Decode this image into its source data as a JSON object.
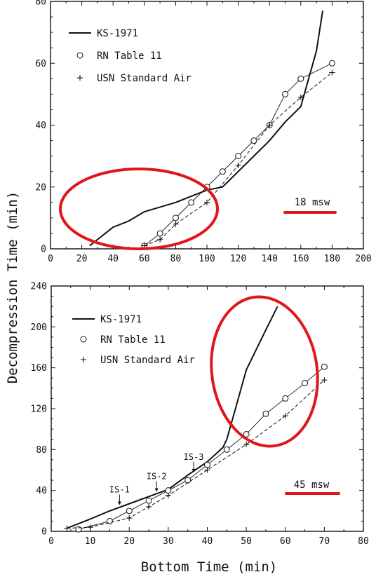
{
  "shared": {
    "ylabel": "Decompression Time (min)",
    "xlabel": "Bottom Time (min)"
  },
  "chart_data": [
    {
      "type": "line",
      "xlim": [
        0,
        200
      ],
      "ylim": [
        0,
        80
      ],
      "xticks": [
        0,
        20,
        40,
        60,
        80,
        100,
        120,
        140,
        160,
        180,
        200
      ],
      "yticks": [
        0,
        20,
        40,
        60,
        80
      ],
      "depth_label": "18 msw",
      "legend_position": "top-left",
      "series": [
        {
          "name": "KS-1971",
          "style": "solid",
          "x": [
            25,
            30,
            35,
            40,
            50,
            60,
            70,
            80,
            90,
            100,
            110,
            120,
            130,
            140,
            150,
            160,
            165,
            170,
            174
          ],
          "y": [
            1,
            3,
            5,
            7,
            9,
            12,
            13.5,
            15,
            17,
            19,
            20,
            25,
            30,
            35,
            41,
            46,
            55,
            64,
            77
          ]
        },
        {
          "name": "RN Table 11",
          "style": "thin-circles",
          "x": [
            60,
            70,
            80,
            90,
            100,
            110,
            120,
            130,
            140,
            150,
            160,
            180
          ],
          "y": [
            1,
            5,
            10,
            15,
            20,
            25,
            30,
            35,
            40,
            50,
            55,
            60
          ]
        },
        {
          "name": "USN Standard Air",
          "style": "dashed-plus",
          "x": [
            60,
            70,
            80,
            100,
            120,
            140,
            160,
            180
          ],
          "y": [
            1,
            3,
            8,
            15,
            27,
            40,
            49,
            57
          ]
        }
      ]
    },
    {
      "type": "line",
      "xlim": [
        0,
        80
      ],
      "ylim": [
        0,
        240
      ],
      "xticks": [
        0,
        10,
        20,
        30,
        40,
        50,
        60,
        70,
        80
      ],
      "yticks": [
        0,
        40,
        80,
        120,
        160,
        200,
        240
      ],
      "depth_label": "45 msw",
      "legend_position": "top-left",
      "annotations": [
        {
          "text": "IS-1",
          "x": 17.5,
          "y": 25
        },
        {
          "text": "IS-2",
          "x": 27,
          "y": 38
        },
        {
          "text": "IS-3",
          "x": 36.5,
          "y": 57
        }
      ],
      "series": [
        {
          "name": "KS-1971",
          "style": "solid",
          "x": [
            4,
            10,
            15,
            20,
            25,
            30,
            35,
            40,
            44,
            45,
            47,
            50,
            55,
            58
          ],
          "y": [
            3,
            12,
            20,
            27,
            34,
            41,
            55,
            68,
            82,
            90,
            117,
            158,
            197,
            220
          ]
        },
        {
          "name": "RN Table 11",
          "style": "thin-circles",
          "x": [
            7,
            15,
            20,
            25,
            30,
            35,
            40,
            45,
            50,
            55,
            60,
            65,
            70
          ],
          "y": [
            2,
            10,
            20,
            30,
            40,
            50,
            65,
            80,
            95,
            115,
            130,
            145,
            161
          ]
        },
        {
          "name": "USN Standard Air",
          "style": "dashed-plus",
          "x": [
            4,
            10,
            20,
            25,
            30,
            40,
            50,
            60,
            70
          ],
          "y": [
            3,
            4,
            13,
            24,
            35,
            60,
            85,
            113,
            148
          ]
        }
      ]
    }
  ],
  "highlight_color": "#e0161b"
}
